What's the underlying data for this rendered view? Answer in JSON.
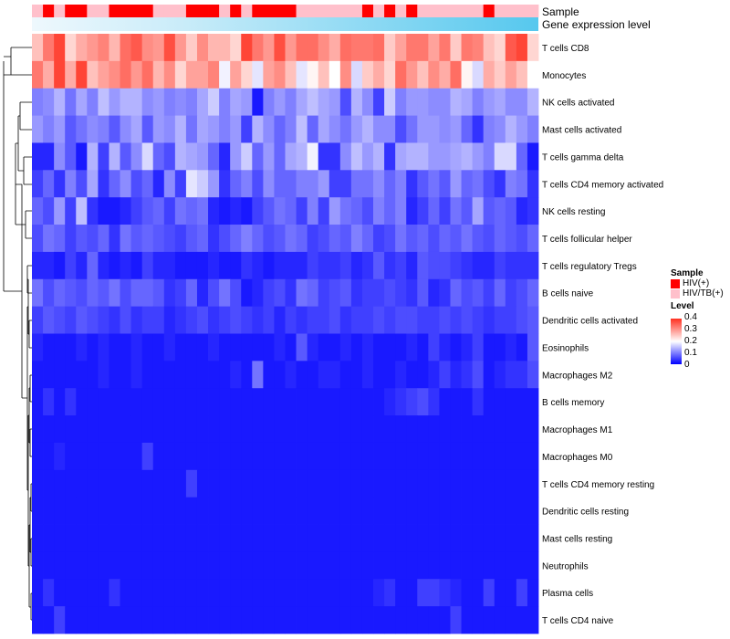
{
  "chart_data": {
    "type": "heatmap",
    "title": "",
    "column_annotations": {
      "sample_label": "Sample",
      "gene_label": "Gene expression level"
    },
    "legend": {
      "sample_title": "Sample",
      "sample_entries": [
        {
          "label": "HIV(+)",
          "color": "#ff0000"
        },
        {
          "label": "HIV/TB(+)",
          "color": "#ffc0cb"
        }
      ],
      "level_title": "Level",
      "level_ticks": [
        "0.4",
        "0.3",
        "0.2",
        "0.1",
        "0"
      ]
    },
    "color_scale": {
      "low": "#0000ff",
      "mid": "#ffffff",
      "high": "#ff3020",
      "min": 0,
      "max": 0.4
    },
    "samples": [
      1,
      0,
      1,
      0,
      0,
      1,
      1,
      0,
      0,
      0,
      0,
      1,
      1,
      1,
      0,
      0,
      0,
      1,
      0,
      1,
      0,
      0,
      0,
      0,
      1,
      1,
      1,
      1,
      1,
      1,
      0,
      1,
      0,
      1,
      0,
      1,
      1,
      1,
      1,
      1,
      1,
      0,
      1,
      1,
      1,
      1
    ],
    "rows": [
      "T cells CD8",
      "Monocytes",
      "NK cells activated",
      "Mast cells activated",
      "T cells gamma delta",
      "T cells CD4 memory activated",
      "NK cells resting",
      "T cells follicular helper",
      "T cells regulatory  Tregs",
      "B cells naive",
      "Dendritic cells activated",
      "Eosinophils",
      "Macrophages M2",
      "B cells memory",
      "Macrophages M1",
      "Macrophages M0",
      "T cells CD4 memory resting",
      "Dendritic cells resting",
      "Mast cells resting",
      "Neutrophils",
      "Plasma cells",
      "T cells CD4 naive"
    ],
    "values": [
      [
        0.26,
        0.33,
        0.38,
        0.24,
        0.28,
        0.3,
        0.32,
        0.27,
        0.34,
        0.36,
        0.31,
        0.3,
        0.37,
        0.3,
        0.25,
        0.31,
        0.27,
        0.27,
        0.24,
        0.38,
        0.33,
        0.3,
        0.37,
        0.3,
        0.34,
        0.34,
        0.31,
        0.28,
        0.34,
        0.33,
        0.33,
        0.34,
        0.25,
        0.29,
        0.33,
        0.33,
        0.29,
        0.33,
        0.25,
        0.33,
        0.32,
        0.26,
        0.24,
        0.36,
        0.38,
        0.24
      ],
      [
        0.33,
        0.28,
        0.38,
        0.28,
        0.38,
        0.26,
        0.29,
        0.31,
        0.34,
        0.3,
        0.34,
        0.27,
        0.31,
        0.24,
        0.29,
        0.29,
        0.32,
        0.19,
        0.29,
        0.24,
        0.18,
        0.29,
        0.31,
        0.26,
        0.18,
        0.21,
        0.26,
        0.2,
        0.31,
        0.17,
        0.25,
        0.28,
        0.24,
        0.34,
        0.3,
        0.26,
        0.31,
        0.28,
        0.34,
        0.21,
        0.17,
        0.28,
        0.25,
        0.29,
        0.26,
        0.2
      ],
      [
        0.1,
        0.11,
        0.14,
        0.09,
        0.13,
        0.1,
        0.15,
        0.12,
        0.14,
        0.14,
        0.11,
        0.12,
        0.1,
        0.11,
        0.1,
        0.13,
        0.16,
        0.1,
        0.13,
        0.12,
        0.02,
        0.1,
        0.12,
        0.1,
        0.13,
        0.15,
        0.13,
        0.12,
        0.06,
        0.14,
        0.11,
        0.05,
        0.16,
        0.1,
        0.12,
        0.12,
        0.11,
        0.11,
        0.14,
        0.13,
        0.1,
        0.12,
        0.13,
        0.11,
        0.11,
        0.14
      ],
      [
        0.12,
        0.1,
        0.12,
        0.07,
        0.09,
        0.11,
        0.1,
        0.07,
        0.11,
        0.13,
        0.07,
        0.12,
        0.11,
        0.14,
        0.09,
        0.13,
        0.12,
        0.1,
        0.12,
        0.05,
        0.14,
        0.11,
        0.08,
        0.1,
        0.15,
        0.08,
        0.13,
        0.11,
        0.09,
        0.12,
        0.14,
        0.11,
        0.11,
        0.06,
        0.09,
        0.12,
        0.12,
        0.11,
        0.12,
        0.08,
        0.04,
        0.1,
        0.11,
        0.14,
        0.12,
        0.1
      ],
      [
        0.03,
        0.03,
        0.11,
        0.07,
        0.02,
        0.14,
        0.05,
        0.14,
        0.07,
        0.11,
        0.17,
        0.08,
        0.06,
        0.14,
        0.13,
        0.12,
        0.08,
        0.03,
        0.12,
        0.16,
        0.08,
        0.12,
        0.08,
        0.13,
        0.14,
        0.19,
        0.04,
        0.04,
        0.11,
        0.15,
        0.12,
        0.14,
        0.04,
        0.13,
        0.14,
        0.14,
        0.12,
        0.12,
        0.13,
        0.14,
        0.12,
        0.1,
        0.17,
        0.17,
        0.08,
        0.02
      ],
      [
        0.05,
        0.08,
        0.04,
        0.1,
        0.06,
        0.13,
        0.04,
        0.08,
        0.11,
        0.06,
        0.08,
        0.03,
        0.11,
        0.05,
        0.18,
        0.16,
        0.12,
        0.04,
        0.08,
        0.1,
        0.06,
        0.11,
        0.08,
        0.08,
        0.1,
        0.1,
        0.12,
        0.05,
        0.05,
        0.09,
        0.09,
        0.11,
        0.08,
        0.1,
        0.04,
        0.07,
        0.09,
        0.07,
        0.12,
        0.08,
        0.09,
        0.06,
        0.04,
        0.1,
        0.09,
        0.04
      ],
      [
        0.08,
        0.06,
        0.12,
        0.05,
        0.15,
        0.04,
        0.02,
        0.02,
        0.03,
        0.05,
        0.07,
        0.08,
        0.05,
        0.09,
        0.08,
        0.09,
        0.03,
        0.02,
        0.03,
        0.02,
        0.05,
        0.07,
        0.09,
        0.08,
        0.05,
        0.1,
        0.05,
        0.12,
        0.09,
        0.08,
        0.06,
        0.1,
        0.08,
        0.1,
        0.03,
        0.05,
        0.08,
        0.05,
        0.09,
        0.07,
        0.13,
        0.07,
        0.08,
        0.07,
        0.03,
        0.04
      ],
      [
        0.06,
        0.09,
        0.08,
        0.05,
        0.07,
        0.06,
        0.08,
        0.04,
        0.09,
        0.07,
        0.08,
        0.07,
        0.06,
        0.05,
        0.07,
        0.08,
        0.04,
        0.06,
        0.08,
        0.1,
        0.08,
        0.06,
        0.07,
        0.09,
        0.08,
        0.05,
        0.06,
        0.08,
        0.07,
        0.1,
        0.08,
        0.05,
        0.06,
        0.09,
        0.07,
        0.08,
        0.06,
        0.08,
        0.07,
        0.09,
        0.07,
        0.06,
        0.08,
        0.07,
        0.06,
        0.08
      ],
      [
        0.03,
        0.03,
        0.02,
        0.05,
        0.03,
        0.08,
        0.03,
        0.02,
        0.03,
        0.02,
        0.05,
        0.03,
        0.03,
        0.02,
        0.02,
        0.02,
        0.03,
        0.02,
        0.02,
        0.04,
        0.03,
        0.02,
        0.03,
        0.03,
        0.03,
        0.05,
        0.04,
        0.04,
        0.05,
        0.03,
        0.04,
        0.07,
        0.04,
        0.05,
        0.03,
        0.07,
        0.06,
        0.06,
        0.05,
        0.04,
        0.03,
        0.03,
        0.05,
        0.04,
        0.04,
        0.04
      ],
      [
        0.09,
        0.06,
        0.08,
        0.07,
        0.06,
        0.08,
        0.07,
        0.09,
        0.06,
        0.08,
        0.08,
        0.07,
        0.04,
        0.05,
        0.08,
        0.03,
        0.06,
        0.09,
        0.06,
        0.02,
        0.03,
        0.05,
        0.06,
        0.04,
        0.09,
        0.08,
        0.05,
        0.06,
        0.07,
        0.04,
        0.05,
        0.05,
        0.06,
        0.05,
        0.04,
        0.07,
        0.03,
        0.04,
        0.08,
        0.06,
        0.07,
        0.05,
        0.08,
        0.05,
        0.06,
        0.08
      ],
      [
        0.05,
        0.07,
        0.06,
        0.05,
        0.07,
        0.06,
        0.05,
        0.04,
        0.06,
        0.04,
        0.05,
        0.05,
        0.03,
        0.04,
        0.05,
        0.06,
        0.04,
        0.05,
        0.06,
        0.05,
        0.04,
        0.05,
        0.03,
        0.05,
        0.04,
        0.05,
        0.05,
        0.06,
        0.04,
        0.05,
        0.05,
        0.06,
        0.05,
        0.06,
        0.06,
        0.05,
        0.05,
        0.06,
        0.05,
        0.06,
        0.05,
        0.04,
        0.05,
        0.05,
        0.06,
        0.07
      ],
      [
        0.03,
        0.02,
        0.02,
        0.02,
        0.03,
        0.02,
        0.03,
        0.02,
        0.02,
        0.03,
        0.02,
        0.02,
        0.03,
        0.02,
        0.02,
        0.02,
        0.03,
        0.02,
        0.02,
        0.02,
        0.02,
        0.02,
        0.03,
        0.02,
        0.07,
        0.03,
        0.02,
        0.02,
        0.03,
        0.02,
        0.03,
        0.02,
        0.02,
        0.02,
        0.03,
        0.02,
        0.05,
        0.03,
        0.02,
        0.03,
        0.05,
        0.02,
        0.02,
        0.03,
        0.02,
        0.07
      ],
      [
        0.02,
        0.02,
        0.02,
        0.02,
        0.02,
        0.02,
        0.03,
        0.02,
        0.02,
        0.03,
        0.02,
        0.02,
        0.02,
        0.02,
        0.02,
        0.02,
        0.02,
        0.02,
        0.03,
        0.02,
        0.09,
        0.02,
        0.02,
        0.03,
        0.02,
        0.02,
        0.03,
        0.03,
        0.02,
        0.02,
        0.03,
        0.02,
        0.02,
        0.03,
        0.02,
        0.02,
        0.03,
        0.05,
        0.03,
        0.04,
        0.06,
        0.02,
        0.03,
        0.04,
        0.04,
        0.06
      ],
      [
        0.02,
        0.04,
        0.02,
        0.04,
        0.02,
        0.02,
        0.02,
        0.02,
        0.02,
        0.02,
        0.02,
        0.02,
        0.02,
        0.02,
        0.02,
        0.02,
        0.02,
        0.02,
        0.02,
        0.02,
        0.02,
        0.02,
        0.02,
        0.02,
        0.02,
        0.02,
        0.02,
        0.02,
        0.02,
        0.02,
        0.02,
        0.02,
        0.03,
        0.04,
        0.05,
        0.06,
        0.04,
        0.02,
        0.02,
        0.02,
        0.04,
        0.02,
        0.02,
        0.02,
        0.02,
        0.02
      ],
      [
        0.02,
        0.02,
        0.02,
        0.02,
        0.02,
        0.02,
        0.02,
        0.02,
        0.02,
        0.02,
        0.02,
        0.02,
        0.02,
        0.02,
        0.02,
        0.02,
        0.02,
        0.02,
        0.02,
        0.02,
        0.02,
        0.02,
        0.02,
        0.02,
        0.02,
        0.02,
        0.02,
        0.02,
        0.02,
        0.02,
        0.02,
        0.02,
        0.02,
        0.02,
        0.02,
        0.02,
        0.02,
        0.02,
        0.02,
        0.02,
        0.02,
        0.02,
        0.02,
        0.02,
        0.02,
        0.02
      ],
      [
        0.02,
        0.02,
        0.03,
        0.02,
        0.02,
        0.02,
        0.02,
        0.02,
        0.02,
        0.02,
        0.05,
        0.02,
        0.02,
        0.02,
        0.02,
        0.02,
        0.02,
        0.02,
        0.02,
        0.02,
        0.02,
        0.02,
        0.02,
        0.02,
        0.02,
        0.02,
        0.02,
        0.02,
        0.02,
        0.02,
        0.02,
        0.02,
        0.02,
        0.02,
        0.02,
        0.02,
        0.02,
        0.02,
        0.02,
        0.02,
        0.02,
        0.02,
        0.02,
        0.02,
        0.02,
        0.02
      ],
      [
        0.02,
        0.02,
        0.02,
        0.02,
        0.02,
        0.02,
        0.02,
        0.02,
        0.02,
        0.02,
        0.02,
        0.02,
        0.02,
        0.02,
        0.05,
        0.02,
        0.02,
        0.02,
        0.02,
        0.02,
        0.02,
        0.02,
        0.02,
        0.02,
        0.02,
        0.02,
        0.02,
        0.02,
        0.02,
        0.02,
        0.02,
        0.02,
        0.02,
        0.02,
        0.02,
        0.02,
        0.02,
        0.02,
        0.02,
        0.02,
        0.02,
        0.02,
        0.02,
        0.02,
        0.02,
        0.02
      ],
      [
        0.02,
        0.02,
        0.02,
        0.02,
        0.02,
        0.02,
        0.02,
        0.02,
        0.02,
        0.02,
        0.02,
        0.02,
        0.02,
        0.02,
        0.02,
        0.02,
        0.02,
        0.02,
        0.02,
        0.02,
        0.02,
        0.02,
        0.02,
        0.02,
        0.02,
        0.02,
        0.02,
        0.02,
        0.02,
        0.02,
        0.02,
        0.02,
        0.02,
        0.02,
        0.02,
        0.02,
        0.02,
        0.02,
        0.02,
        0.02,
        0.02,
        0.02,
        0.02,
        0.02,
        0.02,
        0.02
      ],
      [
        0.02,
        0.02,
        0.02,
        0.02,
        0.02,
        0.02,
        0.02,
        0.02,
        0.02,
        0.02,
        0.02,
        0.02,
        0.02,
        0.02,
        0.02,
        0.02,
        0.02,
        0.02,
        0.02,
        0.02,
        0.02,
        0.02,
        0.02,
        0.02,
        0.02,
        0.02,
        0.02,
        0.02,
        0.02,
        0.02,
        0.02,
        0.02,
        0.02,
        0.02,
        0.02,
        0.02,
        0.02,
        0.02,
        0.02,
        0.02,
        0.02,
        0.02,
        0.02,
        0.02,
        0.02,
        0.02
      ],
      [
        0.02,
        0.02,
        0.02,
        0.02,
        0.02,
        0.02,
        0.02,
        0.02,
        0.02,
        0.02,
        0.02,
        0.02,
        0.02,
        0.02,
        0.02,
        0.02,
        0.02,
        0.02,
        0.02,
        0.02,
        0.02,
        0.02,
        0.02,
        0.02,
        0.02,
        0.02,
        0.02,
        0.02,
        0.02,
        0.02,
        0.02,
        0.02,
        0.02,
        0.02,
        0.02,
        0.02,
        0.02,
        0.02,
        0.02,
        0.02,
        0.02,
        0.02,
        0.02,
        0.02,
        0.02,
        0.02
      ],
      [
        0.02,
        0.04,
        0.02,
        0.02,
        0.02,
        0.02,
        0.02,
        0.04,
        0.02,
        0.02,
        0.02,
        0.02,
        0.02,
        0.02,
        0.02,
        0.02,
        0.02,
        0.02,
        0.02,
        0.02,
        0.02,
        0.02,
        0.02,
        0.02,
        0.02,
        0.02,
        0.02,
        0.02,
        0.02,
        0.02,
        0.02,
        0.03,
        0.04,
        0.02,
        0.02,
        0.05,
        0.05,
        0.04,
        0.03,
        0.02,
        0.02,
        0.05,
        0.02,
        0.02,
        0.05,
        0.02
      ],
      [
        0.02,
        0.02,
        0.05,
        0.02,
        0.02,
        0.02,
        0.02,
        0.02,
        0.02,
        0.02,
        0.02,
        0.02,
        0.02,
        0.02,
        0.02,
        0.02,
        0.02,
        0.02,
        0.02,
        0.02,
        0.02,
        0.02,
        0.02,
        0.02,
        0.02,
        0.02,
        0.02,
        0.02,
        0.02,
        0.02,
        0.02,
        0.02,
        0.02,
        0.02,
        0.02,
        0.02,
        0.02,
        0.02,
        0.05,
        0.02,
        0.02,
        0.02,
        0.02,
        0.02,
        0.02,
        0.02
      ]
    ]
  }
}
